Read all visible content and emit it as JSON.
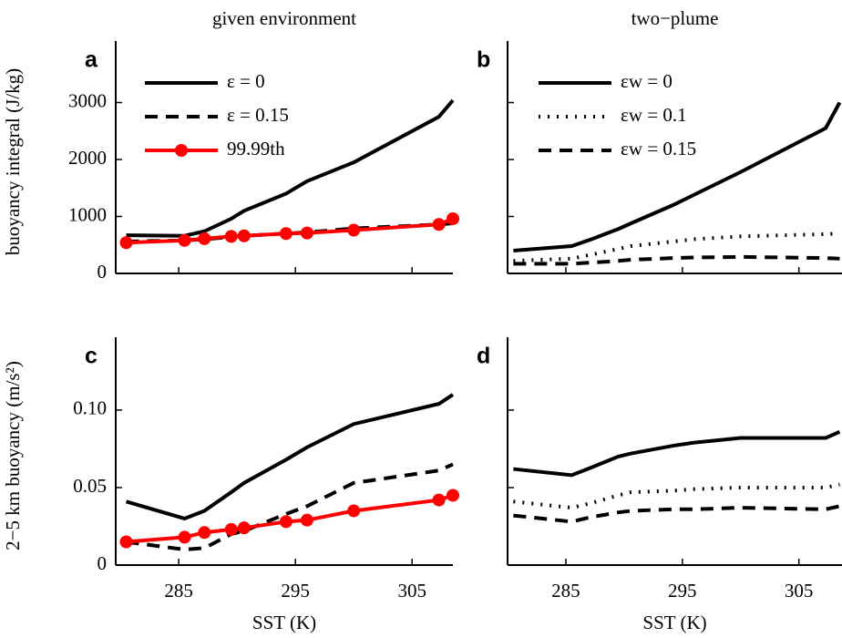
{
  "chart_data": [
    {
      "type": "line",
      "title": "given environment",
      "panel_label": "a",
      "ylabel": "buoyancy integral (J/kg)",
      "x": [
        280.5,
        285.5,
        287.2,
        289.5,
        290.6,
        294.2,
        296,
        300,
        307.3,
        308.5
      ],
      "series": [
        {
          "name": "ε = 0",
          "color": "#000000",
          "linestyle": "solid",
          "values": [
            670,
            660,
            740,
            960,
            1100,
            1400,
            1620,
            1950,
            2750,
            3040
          ]
        },
        {
          "name": "ε = 0.15",
          "color": "#000000",
          "linestyle": "dashed",
          "values": [
            560,
            580,
            600,
            640,
            660,
            700,
            720,
            790,
            860,
            880
          ]
        },
        {
          "name": "99.99th",
          "color": "#ff0000",
          "linestyle": "solid",
          "marker": "o",
          "values": [
            540,
            580,
            610,
            650,
            660,
            700,
            710,
            760,
            860,
            960
          ]
        }
      ],
      "xlim": [
        279.6,
        308.5
      ],
      "ylim": [
        0,
        4080
      ],
      "xticks": [
        285,
        295,
        305
      ],
      "yticks": [
        0,
        1000,
        2000,
        3000
      ],
      "show_xtick_labels": false,
      "show_ytick_labels": true,
      "legend": true
    },
    {
      "type": "line",
      "title": "two−plume",
      "panel_label": "b",
      "x": [
        280.5,
        285.5,
        287.2,
        289.5,
        290.6,
        294.2,
        296,
        300,
        307.3,
        308.5
      ],
      "series": [
        {
          "name": "εw = 0",
          "color": "#000000",
          "linestyle": "solid",
          "values": [
            400,
            480,
            600,
            780,
            880,
            1200,
            1380,
            1780,
            2550,
            3000
          ]
        },
        {
          "name": "εw = 0.1",
          "color": "#000000",
          "linestyle": "dotted",
          "values": [
            220,
            260,
            330,
            430,
            480,
            560,
            600,
            650,
            690,
            700
          ]
        },
        {
          "name": "εw = 0.15",
          "color": "#000000",
          "linestyle": "dashed",
          "values": [
            170,
            170,
            190,
            220,
            240,
            270,
            280,
            290,
            270,
            260
          ]
        }
      ],
      "xlim": [
        280,
        308.7
      ],
      "ylim": [
        0,
        4080
      ],
      "xticks": [
        285,
        295,
        305
      ],
      "yticks": [
        0,
        1000,
        2000,
        3000
      ],
      "show_xtick_labels": false,
      "show_ytick_labels": false,
      "legend": true
    },
    {
      "type": "line",
      "panel_label": "c",
      "xlabel": "SST (K)",
      "ylabel": "2−5 km buoyancy (m/s²)",
      "x": [
        280.5,
        285.5,
        287.2,
        289.5,
        290.6,
        294.2,
        296,
        300,
        307.3,
        308.5
      ],
      "series": [
        {
          "name": "ε = 0",
          "color": "#000000",
          "linestyle": "solid",
          "values": [
            0.041,
            0.03,
            0.035,
            0.047,
            0.053,
            0.068,
            0.076,
            0.091,
            0.104,
            0.11
          ]
        },
        {
          "name": "ε = 0.15",
          "color": "#000000",
          "linestyle": "dashed",
          "values": [
            0.015,
            0.01,
            0.011,
            0.02,
            0.022,
            0.033,
            0.038,
            0.053,
            0.061,
            0.065
          ]
        },
        {
          "name": "99.99th",
          "color": "#ff0000",
          "linestyle": "solid",
          "marker": "o",
          "values": [
            0.015,
            0.018,
            0.021,
            0.023,
            0.024,
            0.028,
            0.029,
            0.035,
            0.042,
            0.045
          ]
        }
      ],
      "xlim": [
        279.6,
        308.5
      ],
      "ylim": [
        0,
        0.147
      ],
      "xticks": [
        285,
        295,
        305
      ],
      "yticks": [
        0,
        {
          "value": 0.05,
          "label": "0.05"
        },
        {
          "value": 0.1,
          "label": "0.10"
        }
      ],
      "show_xtick_labels": true,
      "show_ytick_labels": true,
      "legend": false
    },
    {
      "type": "line",
      "panel_label": "d",
      "xlabel": "SST (K)",
      "x": [
        280.5,
        285.5,
        287.2,
        289.5,
        290.6,
        294.2,
        296,
        300,
        307.3,
        308.5
      ],
      "series": [
        {
          "name": "εw = 0",
          "color": "#000000",
          "linestyle": "solid",
          "values": [
            0.062,
            0.058,
            0.063,
            0.07,
            0.072,
            0.077,
            0.079,
            0.082,
            0.082,
            0.086
          ]
        },
        {
          "name": "εw = 0.1",
          "color": "#000000",
          "linestyle": "dotted",
          "values": [
            0.041,
            0.037,
            0.04,
            0.045,
            0.047,
            0.048,
            0.049,
            0.05,
            0.05,
            0.052
          ]
        },
        {
          "name": "εw = 0.15",
          "color": "#000000",
          "linestyle": "dashed",
          "values": [
            0.032,
            0.028,
            0.031,
            0.034,
            0.035,
            0.036,
            0.036,
            0.037,
            0.036,
            0.038
          ]
        }
      ],
      "xlim": [
        280,
        308.7
      ],
      "ylim": [
        0,
        0.147
      ],
      "xticks": [
        285,
        295,
        305
      ],
      "yticks": [
        0,
        0.05,
        0.1
      ],
      "show_xtick_labels": true,
      "show_ytick_labels": false,
      "legend": false
    }
  ]
}
